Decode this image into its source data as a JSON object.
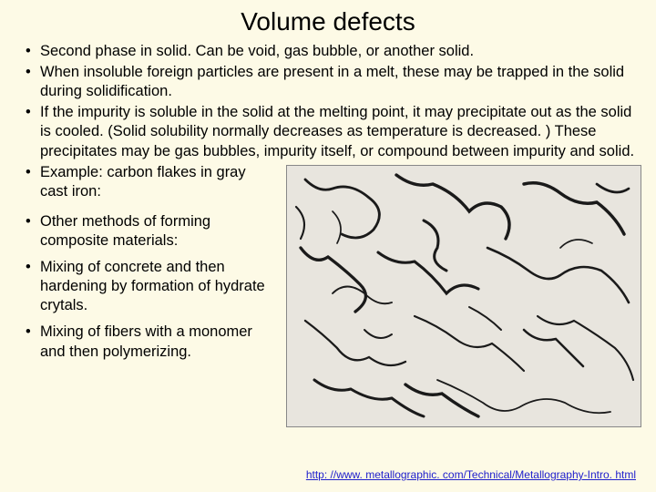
{
  "title": "Volume defects",
  "top_bullets": [
    "Second phase in solid.  Can be void, gas bubble, or another solid.",
    "When insoluble foreign particles are present in a melt, these may be trapped in the solid during solidification.",
    "If the impurity is soluble in the solid at the melting point, it may precipitate out as the solid is cooled.  (Solid solubility normally decreases as temperature is decreased. )   These precipitates may be gas bubbles, impurity itself, or compound between impurity and solid."
  ],
  "left_bullets": [
    "Example: carbon flakes in gray cast iron:",
    "Other methods of forming composite materials:",
    "Mixing of concrete and then hardening by formation of hydrate crytals.",
    "Mixing of fibers with a monomer and then polymerizing."
  ],
  "link_text": "http: //www. metallographic. com/Technical/Metallography-Intro. html",
  "image": {
    "alt": "carbon-flakes-gray-cast-iron-micrograph",
    "background": "#e8e5de",
    "flake_color": "#1a1a1a",
    "flake_paths": [
      "M20,15 Q35,30 50,25 Q70,18 90,35 Q110,50 95,70 Q80,85 60,75",
      "M120,10 Q140,25 160,20 Q185,30 200,50 Q215,35 235,45 Q250,60 240,80",
      "M260,20 Q280,15 300,30 Q320,45 340,40 Q360,55 370,75",
      "M15,90 Q30,110 45,100 Q65,115 80,130 Q95,145 75,160",
      "M100,95 Q120,110 140,105 Q160,120 175,140 Q190,125 210,135",
      "M220,90 Q245,100 265,115 Q285,130 300,120 Q320,105 345,115 Q365,130 375,150",
      "M20,170 Q40,185 55,200 Q70,220 90,210 Q110,225 130,215",
      "M140,165 Q165,175 185,190 Q205,205 225,195 Q245,210 260,225",
      "M275,165 Q295,180 315,170 Q340,185 360,200 Q375,215 380,235",
      "M30,235 Q50,250 70,245 Q95,260 115,255 Q135,270 150,275",
      "M165,235 Q190,245 215,260 Q235,275 255,265 Q280,250 305,260 Q330,275 355,270",
      "M50,50 Q65,65 55,85",
      "M150,60 Q170,70 165,90 Q155,105 175,115",
      "M300,90 Q315,75 335,85",
      "M85,180 Q100,195 115,185",
      "M200,155 Q220,165 235,180",
      "M50,140 Q65,125 85,140 Q100,155 115,150",
      "M260,180 Q275,195 295,190 Q310,205 325,220",
      "M340,20 Q360,35 375,25",
      "M10,45 Q25,60 15,80",
      "M130,240 Q150,255 170,250 Q190,265 210,275"
    ]
  }
}
